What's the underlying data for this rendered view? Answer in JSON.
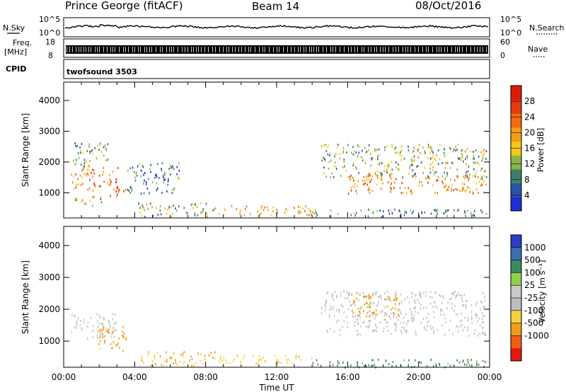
{
  "header": {
    "station": "Prince George (fitACF)",
    "beam": "Beam 14",
    "date": "08/Oct/2016"
  },
  "noise_panel": {
    "left_label": "N.Sky",
    "right_label": "N.Search",
    "ticks": [
      "10^5",
      "10^0"
    ]
  },
  "freq_panel": {
    "left_label_1": "Freq.",
    "left_label_2": "[MHz]",
    "right_label": "Nave",
    "left_ticks": [
      "18",
      "8"
    ],
    "right_ticks": [
      "60",
      "0"
    ]
  },
  "cpid_panel": {
    "label": "CPID",
    "program": "twofsound 3503"
  },
  "colors": {
    "power_scale": [
      "#1f2fd6",
      "#2c53a8",
      "#3d7f6a",
      "#8ab44a",
      "#f2c81a",
      "#f59b14",
      "#f26b10",
      "#e53a0c",
      "#dd1a0a"
    ],
    "velocity_scale": [
      "#2b40c4",
      "#3e6fae",
      "#3d8a5e",
      "#8dd04a",
      "#c8c8c8",
      "#bdbdbd",
      "#f7d23a",
      "#f39b1a",
      "#ee5e16",
      "#e01a10"
    ]
  },
  "chart_data": [
    {
      "type": "heatmap",
      "name": "Power",
      "ylabel": "Slant Range [km]",
      "yticks": [
        1000,
        2000,
        3000,
        4000
      ],
      "ylim": [
        180,
        4600
      ],
      "xlim": [
        0,
        24
      ],
      "colorbar": {
        "label": "Power [dB]",
        "tick_labels": [
          "4",
          "8",
          "12",
          "16",
          "20",
          "24",
          "28"
        ],
        "range": [
          0,
          32
        ]
      },
      "scatter_regions": [
        {
          "t": [
            0.4,
            3.1
          ],
          "r": [
            1100,
            1900
          ],
          "value": 22
        },
        {
          "t": [
            2.6,
            3.5
          ],
          "r": [
            900,
            1200
          ],
          "value": 26
        },
        {
          "t": [
            0.5,
            2.2
          ],
          "r": [
            600,
            900
          ],
          "value": 16
        },
        {
          "t": [
            0.5,
            2.5
          ],
          "r": [
            1900,
            2700
          ],
          "value": 10
        },
        {
          "t": [
            4.2,
            8.5
          ],
          "r": [
            250,
            700
          ],
          "value": 12
        },
        {
          "t": [
            8.5,
            14
          ],
          "r": [
            300,
            600
          ],
          "value": 18
        },
        {
          "t": [
            14,
            23.8
          ],
          "r": [
            250,
            500
          ],
          "value": 8
        },
        {
          "t": [
            14.5,
            23.8
          ],
          "r": [
            1500,
            2600
          ],
          "value": 12
        },
        {
          "t": [
            16,
            23.8
          ],
          "r": [
            1000,
            1600
          ],
          "value": 22
        },
        {
          "t": [
            3.5,
            6.5
          ],
          "r": [
            1000,
            2000
          ],
          "value": 8
        }
      ]
    },
    {
      "type": "heatmap",
      "name": "Velocity",
      "ylabel": "Slant Range [km]",
      "yticks": [
        1000,
        2000,
        3000,
        4000
      ],
      "ylim": [
        180,
        4600
      ],
      "xlim": [
        0,
        24
      ],
      "xticks": [
        "00:00",
        "04:00",
        "08:00",
        "12:00",
        "16:00",
        "20:00",
        "00:00"
      ],
      "xlabel": "Time UT",
      "colorbar": {
        "label": "Velocity [m s⁻¹]",
        "tick_labels": [
          "1000",
          "500",
          "100",
          "25",
          "-25",
          "-100",
          "-500",
          "-1000"
        ]
      },
      "scatter_regions": [
        {
          "t": [
            0.4,
            3.1
          ],
          "r": [
            1100,
            1900
          ],
          "value": "ground"
        },
        {
          "t": [
            1.8,
            3.5
          ],
          "r": [
            700,
            1500
          ],
          "value": -300
        },
        {
          "t": [
            4.2,
            8.5
          ],
          "r": [
            250,
            700
          ],
          "value": -100
        },
        {
          "t": [
            8.5,
            14
          ],
          "r": [
            300,
            600
          ],
          "value": -60
        },
        {
          "t": [
            14,
            23.8
          ],
          "r": [
            200,
            450
          ],
          "value": 60
        },
        {
          "t": [
            14.5,
            23.8
          ],
          "r": [
            1200,
            2600
          ],
          "value": "ground"
        },
        {
          "t": [
            16,
            19
          ],
          "r": [
            1800,
            2500
          ],
          "value": -300
        }
      ]
    }
  ]
}
